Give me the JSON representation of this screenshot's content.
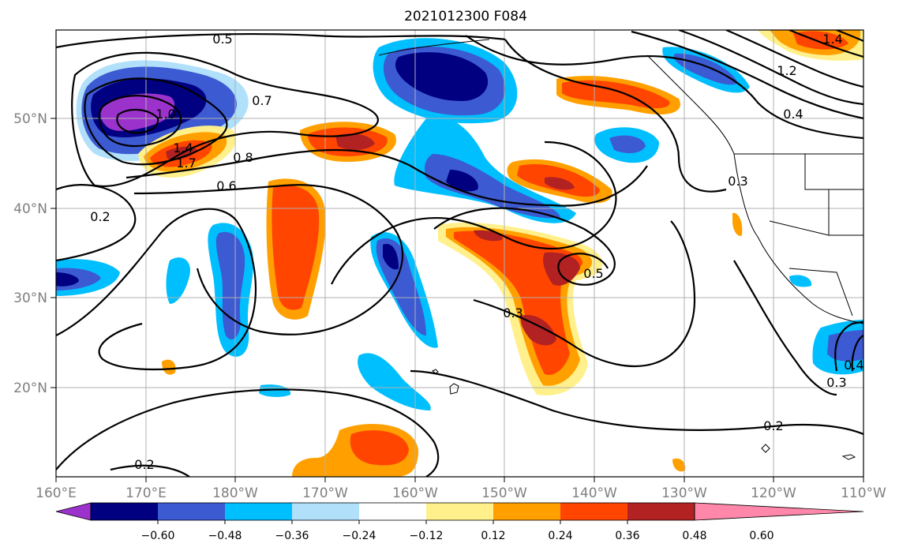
{
  "title": "2021012300 F084",
  "lon_labels": [
    "160°E",
    "170°E",
    "180°W",
    "170°W",
    "160°W",
    "150°W",
    "140°W",
    "130°W",
    "120°W",
    "110°W"
  ],
  "lat_labels": [
    "50°N",
    "40°N",
    "30°N",
    "20°N"
  ],
  "colorbar": {
    "tick_labels": [
      "−0.60",
      "−0.48",
      "−0.36",
      "−0.24",
      "−0.12",
      "0.12",
      "0.24",
      "0.36",
      "0.48",
      "0.60"
    ],
    "colors": [
      "#9b32cc",
      "#000080",
      "#3c5ad2",
      "#00bfff",
      "#b0e0fa",
      "#ffffff",
      "#fff08c",
      "#ffa000",
      "#ff4500",
      "#b22222",
      "#ff88aa"
    ]
  },
  "contour_labels": [
    "0.5",
    "0.7",
    "1.0",
    "1.4",
    "1.7",
    "0.8",
    "0.6",
    "0.2",
    "1.4",
    "1.2",
    "0.4",
    "0.3",
    "0.5",
    "0.3",
    "0.3",
    "0.4",
    "0.2",
    "0.2"
  ]
}
